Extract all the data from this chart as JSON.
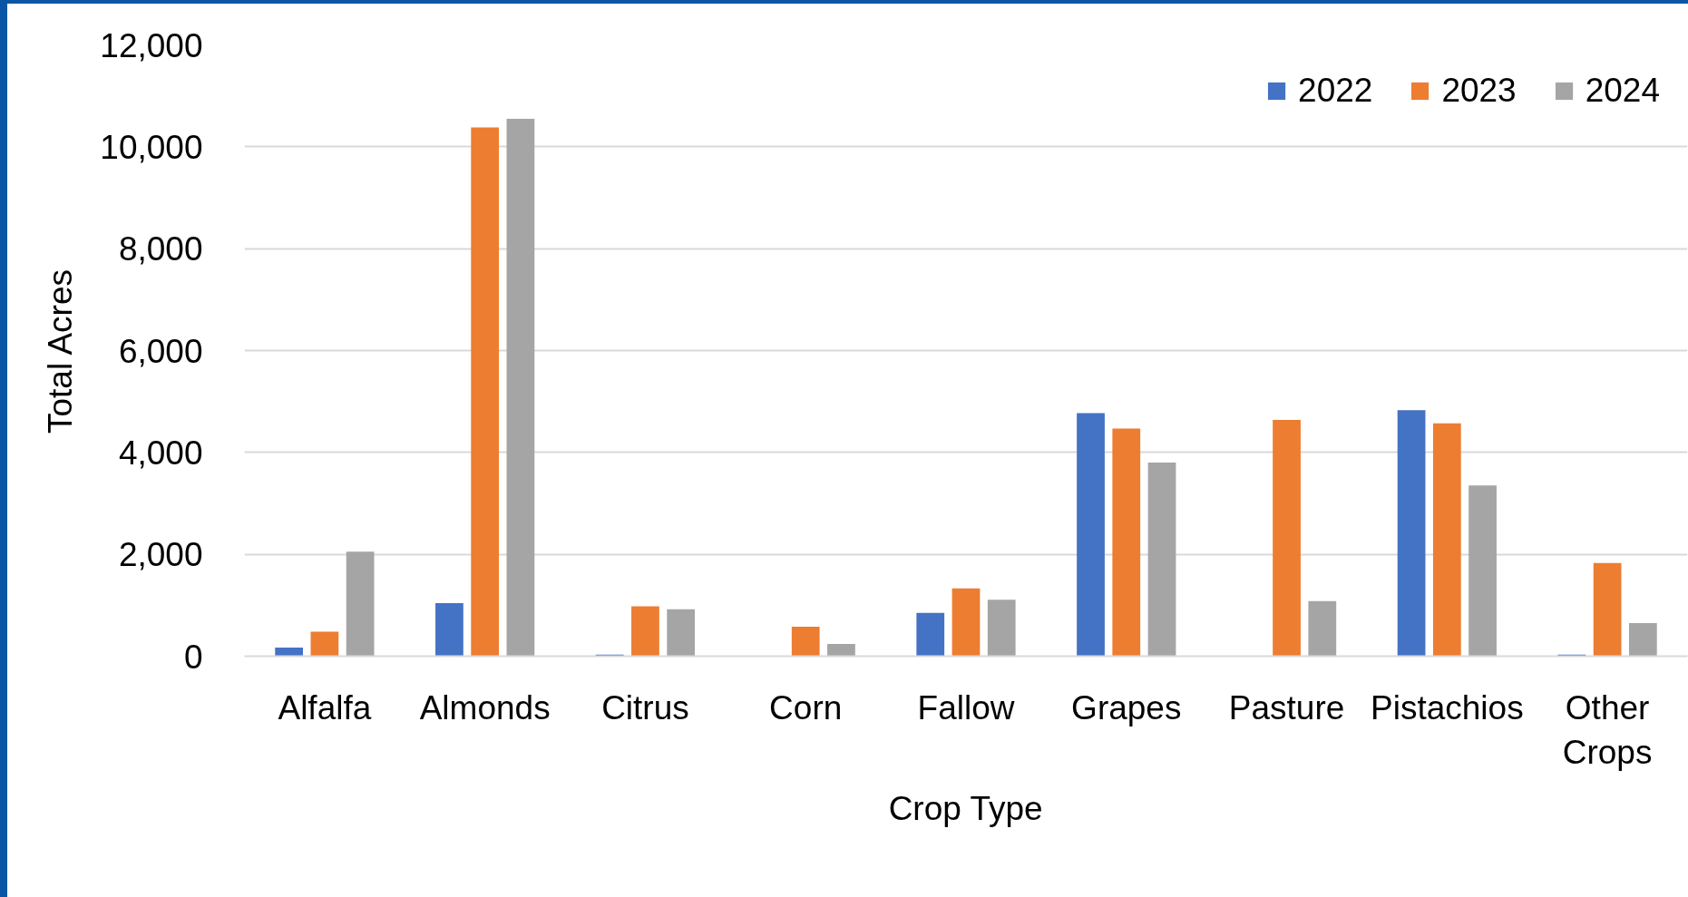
{
  "chart_data": {
    "type": "bar",
    "xlabel": "Crop Type",
    "ylabel": "Total Acres",
    "categories": [
      "Alfalfa",
      "Almonds",
      "Citrus",
      "Corn",
      "Fallow",
      "Grapes",
      "Pasture",
      "Pistachios",
      "Other Crops"
    ],
    "series": [
      {
        "name": "2022",
        "color": "#4472c4",
        "values": [
          170,
          1040,
          30,
          null,
          850,
          4770,
          null,
          4830,
          30
        ]
      },
      {
        "name": "2023",
        "color": "#ed7d31",
        "values": [
          480,
          10380,
          980,
          580,
          1330,
          4470,
          4640,
          4570,
          1830
        ]
      },
      {
        "name": "2024",
        "color": "#a5a5a5",
        "values": [
          2050,
          10550,
          920,
          240,
          1110,
          3800,
          1080,
          3350,
          650
        ]
      }
    ],
    "ylim": [
      0,
      12000
    ],
    "yticks": [
      0,
      {
        "value": 2000,
        "label": "2,000"
      },
      {
        "value": 4000,
        "label": "4,000"
      },
      {
        "value": 6000,
        "label": "6,000"
      },
      {
        "value": 8000,
        "label": "8,000"
      },
      {
        "value": 10000,
        "label": "10,000"
      },
      {
        "value": 12000,
        "label": "12,000"
      }
    ],
    "grid": "y",
    "legend": "top right"
  }
}
